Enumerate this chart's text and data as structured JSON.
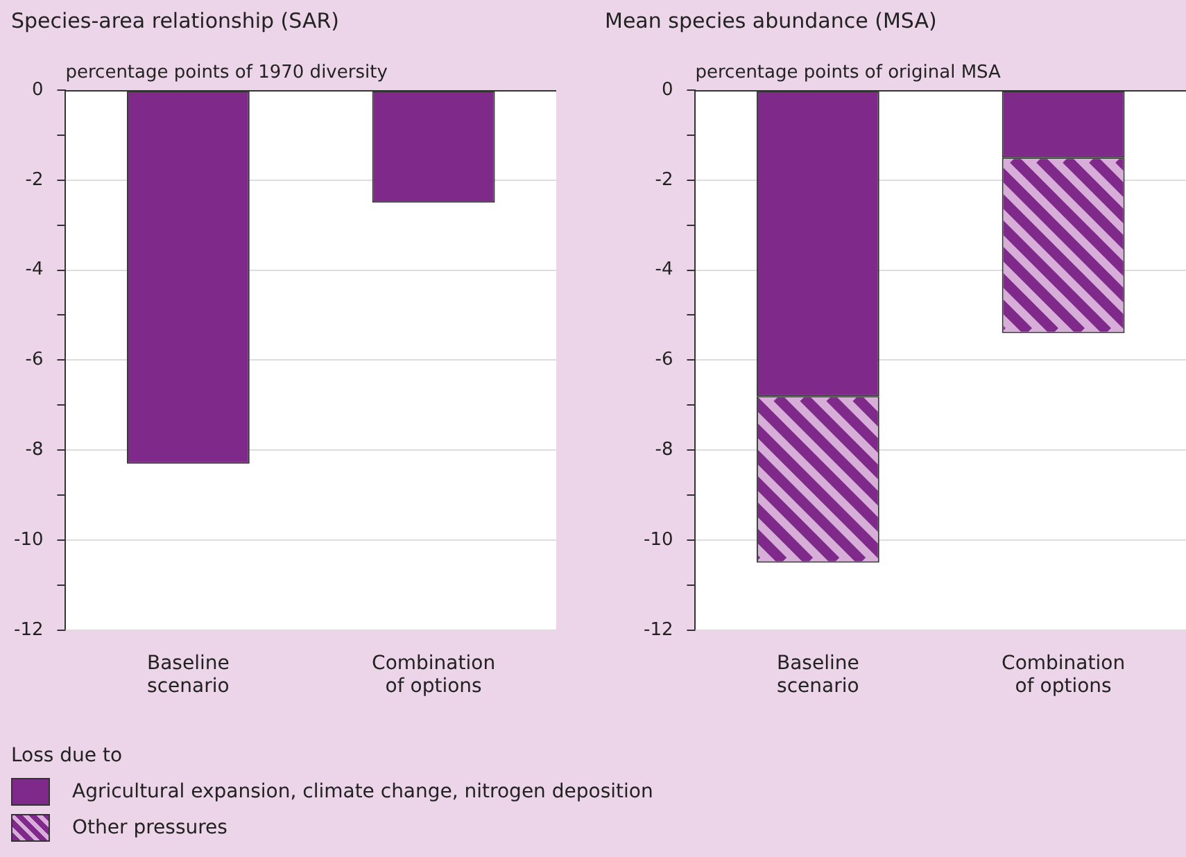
{
  "chart_data": [
    {
      "type": "bar",
      "title": "Species-area relationship (SAR)",
      "ylabel": "percentage points of 1970 diversity",
      "categories": [
        "Baseline scenario",
        "Combination of options"
      ],
      "series": [
        {
          "color": "#7f2a8a",
          "values": [
            -8.3,
            -2.5
          ]
        }
      ],
      "stacked": true,
      "ylim": [
        -12,
        0
      ],
      "yticks": [
        0,
        {
          "value": -1,
          "label": null
        },
        -2,
        {
          "value": -3,
          "label": null
        },
        -4,
        {
          "value": -5,
          "label": null
        },
        -6,
        {
          "value": -7,
          "label": null
        },
        -8,
        {
          "value": -9,
          "label": null
        },
        -10,
        {
          "value": -11,
          "label": null
        },
        -12
      ],
      "grid": "y",
      "legend": false
    },
    {
      "type": "bar",
      "title": "Mean species abundance (MSA)",
      "ylabel": "percentage points of original MSA",
      "categories": [
        "Baseline scenario",
        "Combination of options"
      ],
      "series": [
        {
          "name": "Agricultural expansion, climate change, nitrogen deposition",
          "color": "#7f2a8a",
          "values": [
            -6.8,
            -1.5
          ]
        },
        {
          "name": "Other pressures",
          "color": "#d6aed8",
          "values": [
            -3.7,
            -3.9
          ]
        }
      ],
      "stacked": true,
      "ylim": [
        -12,
        0
      ],
      "yticks": [
        0,
        {
          "value": -1,
          "label": null
        },
        -2,
        {
          "value": -3,
          "label": null
        },
        -4,
        {
          "value": -5,
          "label": null
        },
        -6,
        {
          "value": -7,
          "label": null
        },
        -8,
        {
          "value": -9,
          "label": null
        },
        -10,
        {
          "value": -11,
          "label": null
        },
        -12
      ],
      "grid": "y",
      "legend": "bottom left",
      "legend_title": "Loss due to"
    }
  ]
}
